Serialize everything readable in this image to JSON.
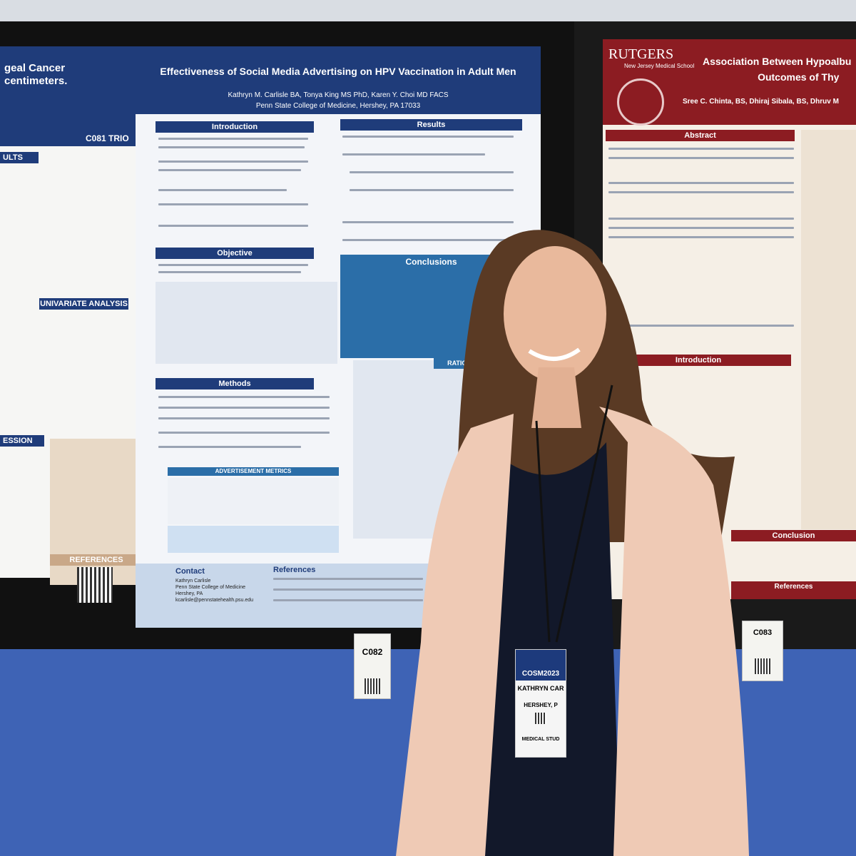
{
  "left_poster": {
    "title_lines": [
      "geal Cancer",
      "centimeters."
    ],
    "tag": "C081 TRIO",
    "sections": [
      "ULTS",
      "UNIVARIATE ANALYSIS",
      "ESSION",
      "REFERENCES"
    ]
  },
  "center_poster": {
    "title": "Effectiveness of Social Media Advertising on HPV Vaccination in Adult Men",
    "authors": "Kathryn M. Carlisle BA, Tonya King MS PhD, Karen Y. Choi MD FACS",
    "affiliation": "Penn State College of Medicine, Hershey, PA 17033",
    "sections": {
      "introduction": "Introduction",
      "results": "Results",
      "objective": "Objective",
      "conclusions": "Conclusions",
      "methods": "Methods",
      "metrics": "ADVERTISEMENT METRICS",
      "rationale": "RATIONALE FOR V",
      "contact": "Contact",
      "references": "References"
    },
    "contact_lines": [
      "Kathryn Carlisle",
      "Penn State College of Medicine",
      "Hershey, PA",
      "kcarlisle@pennstatehealth.psu.edu"
    ],
    "tag": "C082"
  },
  "right_poster": {
    "logo": "RUTGERS",
    "school": "New Jersey Medical School",
    "title_lines": [
      "Association Between Hypoalbu",
      "Outcomes of Thy"
    ],
    "authors": "Sree C. Chinta, BS, Dhiraj Sibala, BS, Dhruv M",
    "sections": {
      "abstract": "Abstract",
      "introduction": "Introduction",
      "conclusion": "Conclusion",
      "references": "References"
    },
    "tag": "C083"
  },
  "badge": {
    "event": "COSM2023",
    "name": "KATHRYN CAR",
    "city": "HERSHEY, P",
    "role": "MEDICAL STUD"
  }
}
